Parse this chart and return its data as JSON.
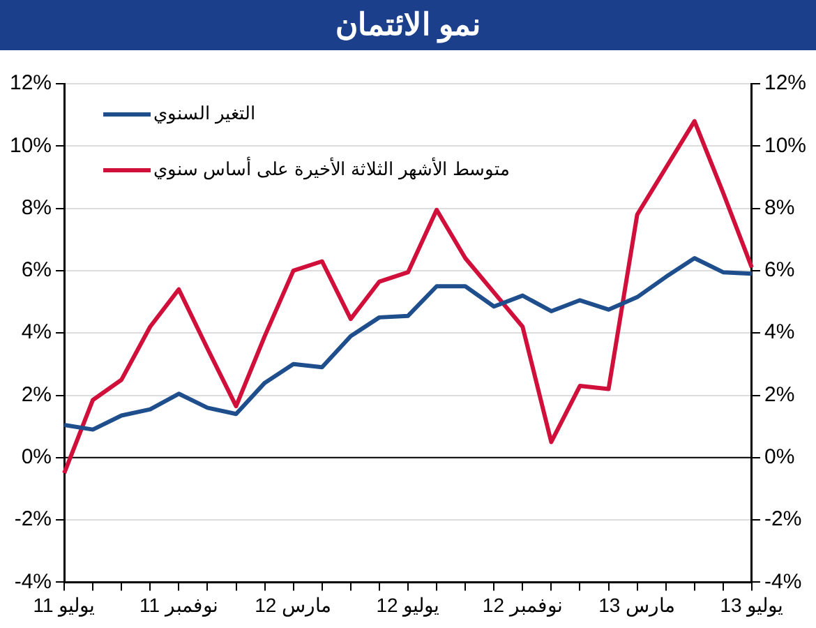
{
  "chart_data": {
    "type": "line",
    "title": "نمو الائتمان",
    "categories": [
      "يوليو 11",
      null,
      null,
      null,
      "نوفمبر 11",
      null,
      null,
      null,
      "مارس 12",
      null,
      null,
      null,
      "يوليو 12",
      null,
      null,
      null,
      "نوفمبر 12",
      null,
      null,
      null,
      "مارس 13",
      null,
      null,
      null,
      "يوليو 13"
    ],
    "series": [
      {
        "name": "التغير السنوي",
        "color": "#1f4e8c",
        "values": [
          1.05,
          0.9,
          1.35,
          1.55,
          2.05,
          1.6,
          1.4,
          2.4,
          3.0,
          2.9,
          3.9,
          4.5,
          4.55,
          5.5,
          5.5,
          4.85,
          5.2,
          4.7,
          5.05,
          4.75,
          5.15,
          5.8,
          6.4,
          5.95,
          5.9
        ]
      },
      {
        "name": "متوسط الأشهر الثلاثة الأخيرة على أساس سنوي",
        "color": "#d0103a",
        "values": [
          -0.5,
          1.85,
          2.5,
          4.2,
          5.4,
          3.5,
          1.65,
          3.9,
          6.0,
          6.3,
          4.45,
          5.65,
          5.95,
          7.95,
          6.4,
          5.3,
          4.2,
          0.5,
          2.3,
          2.2,
          7.8,
          9.3,
          10.8,
          8.5,
          6.1
        ]
      }
    ],
    "ylim": [
      -4,
      12
    ],
    "yticks": [
      {
        "value": -4,
        "label": "-4%"
      },
      {
        "value": -2,
        "label": "-2%"
      },
      {
        "value": 0,
        "label": "0%"
      },
      {
        "value": 2,
        "label": "2%"
      },
      {
        "value": 4,
        "label": "4%"
      },
      {
        "value": 6,
        "label": "6%"
      },
      {
        "value": 8,
        "label": "8%"
      },
      {
        "value": 10,
        "label": "10%"
      },
      {
        "value": 12,
        "label": "12%"
      }
    ],
    "y2lim": [
      -4,
      12
    ],
    "y2ticks": [
      {
        "value": -4,
        "label": "-4%"
      },
      {
        "value": -2,
        "label": "-2%"
      },
      {
        "value": 0,
        "label": "0%"
      },
      {
        "value": 2,
        "label": "2%"
      },
      {
        "value": 4,
        "label": "4%"
      },
      {
        "value": 6,
        "label": "6%"
      },
      {
        "value": 8,
        "label": "8%"
      },
      {
        "value": 10,
        "label": "10%"
      },
      {
        "value": 12,
        "label": "12%"
      }
    ],
    "grid": "y",
    "legend": "top left",
    "marker": "none",
    "line_style": "solid"
  }
}
